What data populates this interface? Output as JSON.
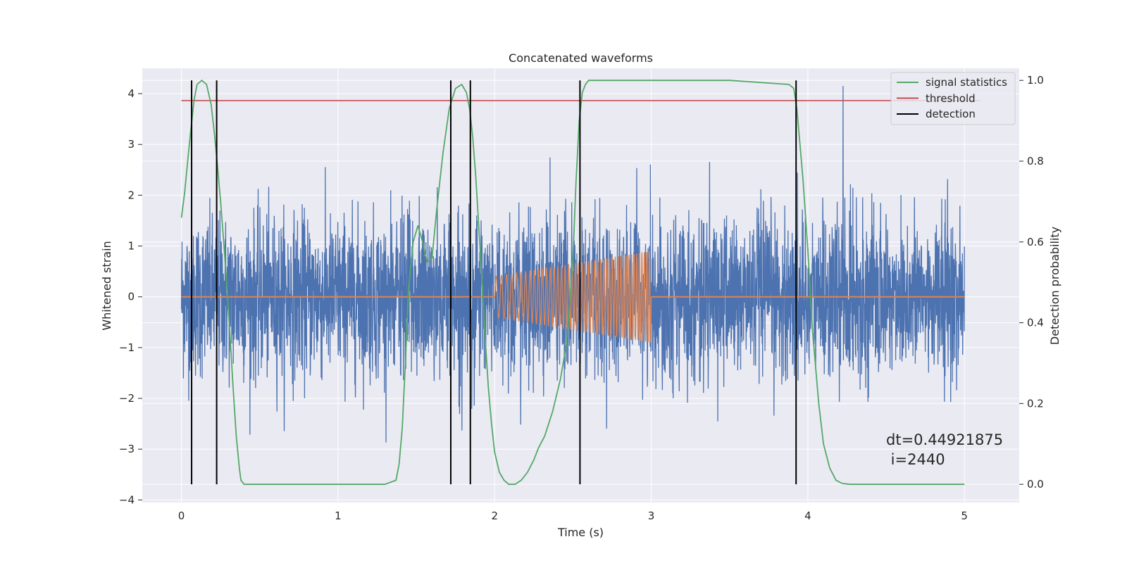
{
  "chart_data": {
    "type": "line",
    "title": "Concatenated waveforms",
    "xlabel": "Time (s)",
    "ylabel": "Whitened strain",
    "y2label": "Detection probability",
    "xlim": [
      -0.25,
      5.35
    ],
    "ylim": [
      -4.05,
      4.5
    ],
    "y2lim": [
      -0.045,
      1.03
    ],
    "xticks": [
      0,
      1,
      2,
      3,
      4,
      5
    ],
    "xtick_labels": [
      "0",
      "1",
      "2",
      "3",
      "4",
      "5"
    ],
    "yticks": [
      -4,
      -3,
      -2,
      -1,
      0,
      1,
      2,
      3,
      4
    ],
    "ytick_labels": [
      "−4",
      "−3",
      "−2",
      "−1",
      "0",
      "1",
      "2",
      "3",
      "4"
    ],
    "y2ticks": [
      0.0,
      0.2,
      0.4,
      0.6,
      0.8,
      1.0
    ],
    "y2tick_labels": [
      "0.0",
      "0.2",
      "0.4",
      "0.6",
      "0.8",
      "1.0"
    ],
    "grid": true,
    "legend_position": "top-right",
    "legend": [
      {
        "label": "signal statistics",
        "color": "#55a868"
      },
      {
        "label": "threshold",
        "color": "#c44e52"
      },
      {
        "label": "detection",
        "color": "#000000"
      }
    ],
    "colors": {
      "strain": "#4c72b0",
      "template": "#dd8452",
      "signal_statistics": "#55a868",
      "threshold": "#c44e52",
      "detection": "#000000",
      "plot_bg": "#eaeaf2",
      "grid": "#ffffff"
    },
    "series": [
      {
        "role": "whitened-strain-noise",
        "x_range": [
          0,
          5
        ],
        "y_typical_range": [
          -2.9,
          3.0
        ],
        "y_peak": 4.15
      },
      {
        "role": "injected-chirp",
        "x_range": [
          2.0,
          3.0
        ],
        "amplitude_start": 0.4,
        "amplitude_end": 0.9,
        "baseline": 0
      },
      {
        "name": "signal statistics",
        "axis": "right",
        "x": [
          0,
          0.02,
          0.05,
          0.08,
          0.1,
          0.13,
          0.16,
          0.19,
          0.21,
          0.23,
          0.25,
          0.27,
          0.29,
          0.31,
          0.33,
          0.35,
          0.37,
          0.38,
          0.4,
          0.5,
          1.0,
          1.3,
          1.37,
          1.39,
          1.41,
          1.43,
          1.45,
          1.48,
          1.51,
          1.54,
          1.57,
          1.6,
          1.63,
          1.67,
          1.71,
          1.75,
          1.79,
          1.82,
          1.84,
          1.86,
          1.88,
          1.9,
          1.92,
          1.94,
          1.96,
          1.98,
          2.0,
          2.03,
          2.06,
          2.09,
          2.13,
          2.17,
          2.21,
          2.25,
          2.28,
          2.32,
          2.37,
          2.42,
          2.46,
          2.5,
          2.52,
          2.54,
          2.56,
          2.58,
          2.6,
          2.65,
          3.0,
          3.5,
          3.88,
          3.91,
          3.93,
          3.95,
          3.97,
          4.0,
          4.03,
          4.07,
          4.1,
          4.14,
          4.18,
          4.22,
          4.27,
          4.4,
          5.0
        ],
        "y": [
          0.66,
          0.72,
          0.84,
          0.95,
          0.99,
          1.0,
          0.99,
          0.94,
          0.87,
          0.79,
          0.7,
          0.6,
          0.49,
          0.37,
          0.24,
          0.12,
          0.04,
          0.01,
          0.0,
          0.0,
          0.0,
          0.0,
          0.01,
          0.05,
          0.14,
          0.3,
          0.48,
          0.6,
          0.64,
          0.6,
          0.55,
          0.56,
          0.68,
          0.82,
          0.93,
          0.98,
          0.99,
          0.97,
          0.93,
          0.86,
          0.76,
          0.63,
          0.5,
          0.36,
          0.24,
          0.15,
          0.08,
          0.03,
          0.01,
          0.0,
          0.0,
          0.01,
          0.03,
          0.06,
          0.09,
          0.12,
          0.18,
          0.26,
          0.35,
          0.56,
          0.75,
          0.9,
          0.97,
          0.99,
          1.0,
          1.0,
          1.0,
          1.0,
          0.99,
          0.98,
          0.93,
          0.84,
          0.75,
          0.58,
          0.38,
          0.2,
          0.1,
          0.04,
          0.01,
          0.002,
          0.0,
          0.0,
          0.0
        ]
      },
      {
        "name": "threshold",
        "axis": "right",
        "y": 0.95,
        "x_range": [
          0,
          5.1
        ]
      },
      {
        "name": "detection",
        "type": "vlines",
        "x": [
          0.065,
          0.225,
          1.72,
          1.845,
          2.545,
          3.925
        ]
      }
    ],
    "annotation": {
      "line1": "dt=0.44921875",
      "line2": " i=2440"
    }
  }
}
